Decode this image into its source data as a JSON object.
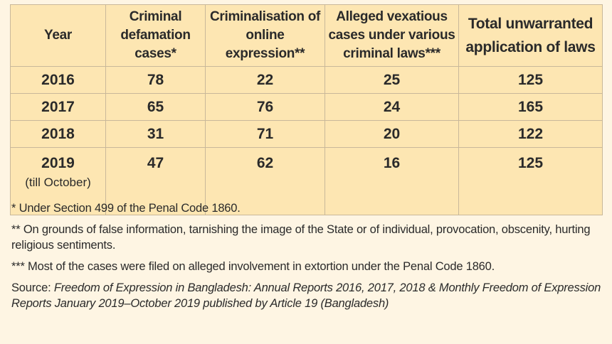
{
  "table": {
    "headers": [
      "Year",
      "Criminal defamation cases*",
      "Criminalisation of online expression**",
      "Alleged vexatious cases under various criminal laws***",
      "Total unwarranted application of laws"
    ],
    "rows": [
      {
        "year": "2016",
        "year_note": "",
        "defamation": "78",
        "online": "22",
        "vexatious": "25",
        "total": "125"
      },
      {
        "year": "2017",
        "year_note": "",
        "defamation": "65",
        "online": "76",
        "vexatious": "24",
        "total": "165"
      },
      {
        "year": "2018",
        "year_note": "",
        "defamation": "31",
        "online": "71",
        "vexatious": "20",
        "total": "122"
      },
      {
        "year": "2019",
        "year_note": "(till October)",
        "defamation": "47",
        "online": "62",
        "vexatious": "16",
        "total": "125"
      }
    ]
  },
  "notes": {
    "note1": "* Under Section 499 of the Penal Code 1860.",
    "note2": "** On grounds of false information, tarnishing the image of the State or of individual, provocation, obscenity, hurting religious sentiments.",
    "note3": "*** Most of the cases were filed on alleged involvement in extortion under the Penal Code 1860.",
    "source_label": "Source:",
    "source_text": "Freedom of Expression in Bangladesh: Annual Reports 2016, 2017, 2018 & Monthly Freedom of Expression Reports January 2019–October 2019 published by Article 19 (Bangladesh)"
  },
  "colors": {
    "table_fill": "#fde6b2",
    "page_background": "#fef5e3",
    "border": "#c9b89a"
  }
}
